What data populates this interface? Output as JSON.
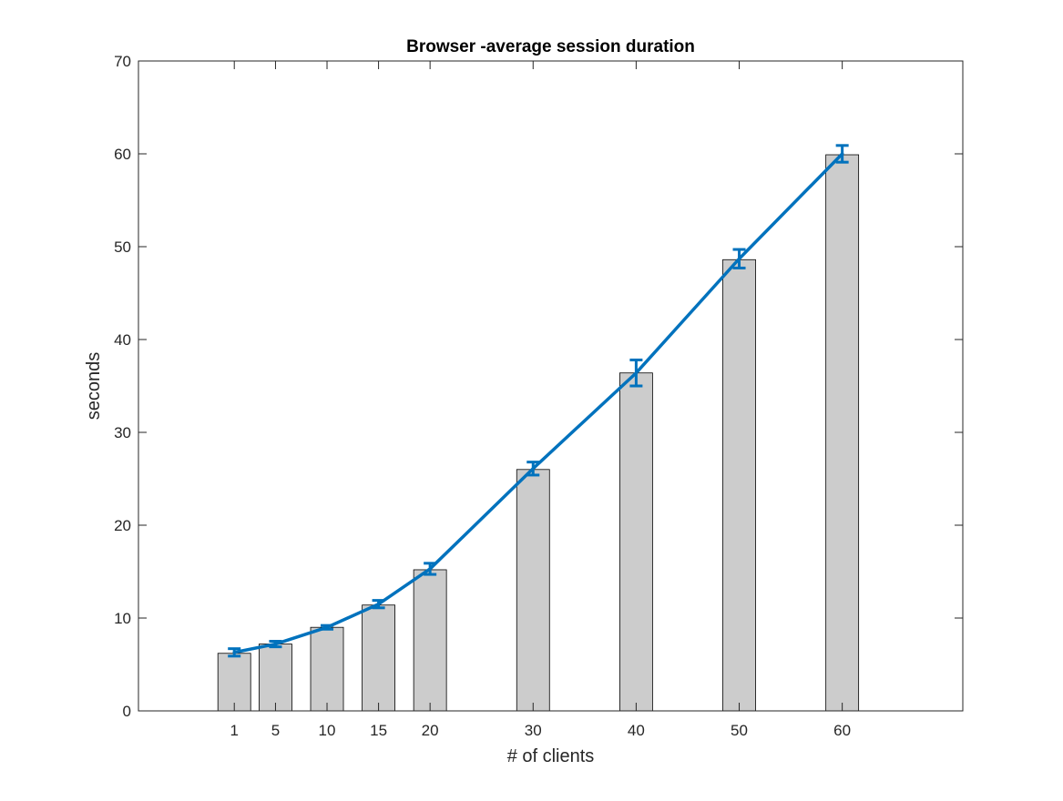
{
  "chart_data": {
    "type": "bar",
    "title": "Browser -average session duration",
    "xlabel": "# of clients",
    "ylabel": "seconds",
    "x": [
      1,
      5,
      10,
      15,
      20,
      30,
      40,
      50,
      60
    ],
    "xtick_labels": [
      "1",
      "5",
      "10",
      "15",
      "20",
      "30",
      "40",
      "50",
      "60"
    ],
    "xlim": [
      -8.3,
      71.7
    ],
    "ylim": [
      0,
      70
    ],
    "yticks": [
      0,
      10,
      20,
      30,
      40,
      50,
      60,
      70
    ],
    "ytick_labels": [
      "0",
      "10",
      "20",
      "30",
      "40",
      "50",
      "60",
      "70"
    ],
    "grid": false,
    "bar_series": {
      "values": [
        6.2,
        7.2,
        9.0,
        11.4,
        15.2,
        26.0,
        36.4,
        48.6,
        59.9
      ],
      "color": "#cccccc"
    },
    "line_series": {
      "values": [
        6.3,
        7.2,
        9.0,
        11.5,
        15.3,
        26.1,
        36.4,
        48.7,
        60.0
      ],
      "error": [
        0.4,
        0.3,
        0.2,
        0.4,
        0.6,
        0.7,
        1.4,
        1.0,
        0.9
      ],
      "color": "#0072bd"
    }
  }
}
